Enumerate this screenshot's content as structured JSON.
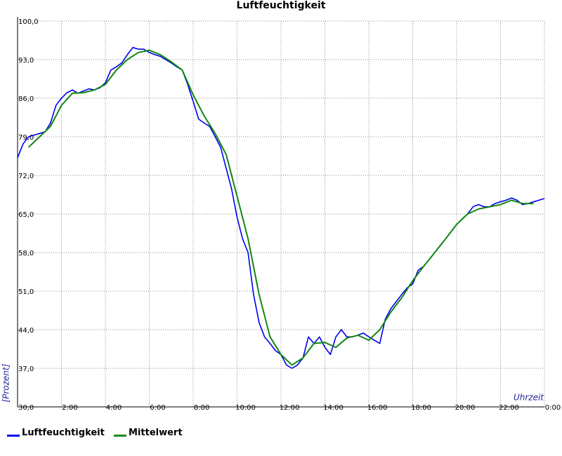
{
  "chart_data": {
    "type": "line",
    "title": "Luftfeuchtigkeit",
    "y_label": "[Prozent]",
    "x_label": "Uhrzeit",
    "grid": true,
    "xlim": [
      0,
      24
    ],
    "ylim": [
      30,
      100
    ],
    "xticks": [
      {
        "value": 2,
        "label": "2:00"
      },
      {
        "value": 4,
        "label": "4:00"
      },
      {
        "value": 6,
        "label": "6:00"
      },
      {
        "value": 8,
        "label": "8:00"
      },
      {
        "value": 10,
        "label": "10:00"
      },
      {
        "value": 12,
        "label": "12:00"
      },
      {
        "value": 14,
        "label": "14:00"
      },
      {
        "value": 16,
        "label": "16:00"
      },
      {
        "value": 18,
        "label": "18:00"
      },
      {
        "value": 20,
        "label": "20:00"
      },
      {
        "value": 22,
        "label": "22:00"
      },
      {
        "value": 24,
        "label": "0:00"
      }
    ],
    "yticks": [
      {
        "value": 30,
        "label": "30,0"
      },
      {
        "value": 37,
        "label": "37,0"
      },
      {
        "value": 44,
        "label": "44,0"
      },
      {
        "value": 51,
        "label": "51,0"
      },
      {
        "value": 58,
        "label": "58,0"
      },
      {
        "value": 65,
        "label": "65,0"
      },
      {
        "value": 72,
        "label": "72,0"
      },
      {
        "value": 79,
        "label": "79,0"
      },
      {
        "value": 86,
        "label": "86,0"
      },
      {
        "value": 93,
        "label": "93,0"
      },
      {
        "value": 100,
        "label": "100,0"
      }
    ],
    "series": [
      {
        "name": "Luftfeuchtigkeit",
        "color": "#0000ee",
        "x": [
          0,
          0.25,
          0.5,
          0.75,
          1,
          1.25,
          1.5,
          1.75,
          2,
          2.25,
          2.5,
          2.75,
          3,
          3.25,
          3.5,
          3.75,
          4,
          4.25,
          4.5,
          4.75,
          5,
          5.25,
          5.5,
          5.75,
          6,
          6.25,
          6.5,
          6.75,
          7,
          7.25,
          7.5,
          7.75,
          8,
          8.25,
          8.5,
          8.75,
          9,
          9.25,
          9.5,
          9.75,
          10,
          10.25,
          10.5,
          10.75,
          11,
          11.25,
          11.5,
          11.75,
          12,
          12.25,
          12.5,
          12.75,
          13,
          13.25,
          13.5,
          13.75,
          14,
          14.25,
          14.5,
          14.75,
          15,
          15.25,
          15.5,
          15.75,
          16,
          16.25,
          16.5,
          16.75,
          17,
          17.25,
          17.5,
          17.75,
          18,
          18.25,
          18.5,
          18.75,
          19,
          19.25,
          19.5,
          19.75,
          20,
          20.25,
          20.5,
          20.75,
          21,
          21.25,
          21.5,
          21.75,
          22,
          22.25,
          22.5,
          22.75,
          23,
          23.25,
          23.5,
          23.75,
          24
        ],
        "values": [
          75.2,
          77.7,
          79,
          79.3,
          79.6,
          79.9,
          81.5,
          84.7,
          86,
          87,
          87.5,
          86.9,
          87.3,
          87.7,
          87.5,
          87.9,
          88.8,
          91.1,
          91.7,
          92.4,
          93.9,
          95.2,
          94.9,
          94.9,
          94.3,
          93.9,
          93.6,
          93,
          92.4,
          91.7,
          91.1,
          88.5,
          85.4,
          82.2,
          81.5,
          80.9,
          79,
          77.1,
          73.3,
          69.5,
          64.4,
          60.5,
          58,
          50.4,
          45.3,
          42.7,
          41.5,
          40.2,
          39.5,
          37.6,
          37,
          37.6,
          38.9,
          42.7,
          41.5,
          42.7,
          40.8,
          39.5,
          42.7,
          44,
          42.7,
          42.7,
          43,
          43.4,
          42.7,
          42.1,
          41.5,
          45.9,
          47.8,
          49.1,
          50.4,
          51.6,
          52.3,
          54.8,
          55.5,
          56.7,
          58,
          59.3,
          60.5,
          61.8,
          63.1,
          64.1,
          65,
          66.3,
          66.7,
          66.3,
          66.3,
          66.9,
          67.2,
          67.5,
          67.9,
          67.5,
          66.7,
          66.9,
          67.2,
          67.5,
          67.8
        ]
      },
      {
        "name": "Mittelwert",
        "color": "#118811",
        "x": [
          0.5,
          1,
          1.5,
          2,
          2.5,
          3,
          3.5,
          4,
          4.5,
          5,
          5.5,
          6,
          6.5,
          7,
          7.5,
          8,
          8.5,
          9,
          9.5,
          10,
          10.5,
          11,
          11.5,
          12,
          12.5,
          13,
          13.5,
          14,
          14.5,
          15,
          15.5,
          16,
          16.5,
          17,
          17.5,
          18,
          18.5,
          19,
          19.5,
          20,
          20.5,
          21,
          21.5,
          22,
          22.5,
          23,
          23.5
        ],
        "values": [
          77.1,
          79,
          80.9,
          84.7,
          86.9,
          87,
          87.5,
          88.5,
          91.1,
          93,
          94.3,
          94.7,
          93.9,
          92.6,
          91.1,
          86.6,
          82.8,
          79.6,
          75.8,
          68.2,
          60.5,
          50.4,
          42.7,
          39.5,
          37.6,
          38.9,
          41.5,
          41.7,
          40.8,
          42.5,
          43,
          42.1,
          44,
          47.2,
          49.8,
          52.9,
          55.5,
          58,
          60.5,
          63.1,
          65,
          65.9,
          66.3,
          66.7,
          67.5,
          66.9,
          66.9
        ]
      }
    ]
  }
}
